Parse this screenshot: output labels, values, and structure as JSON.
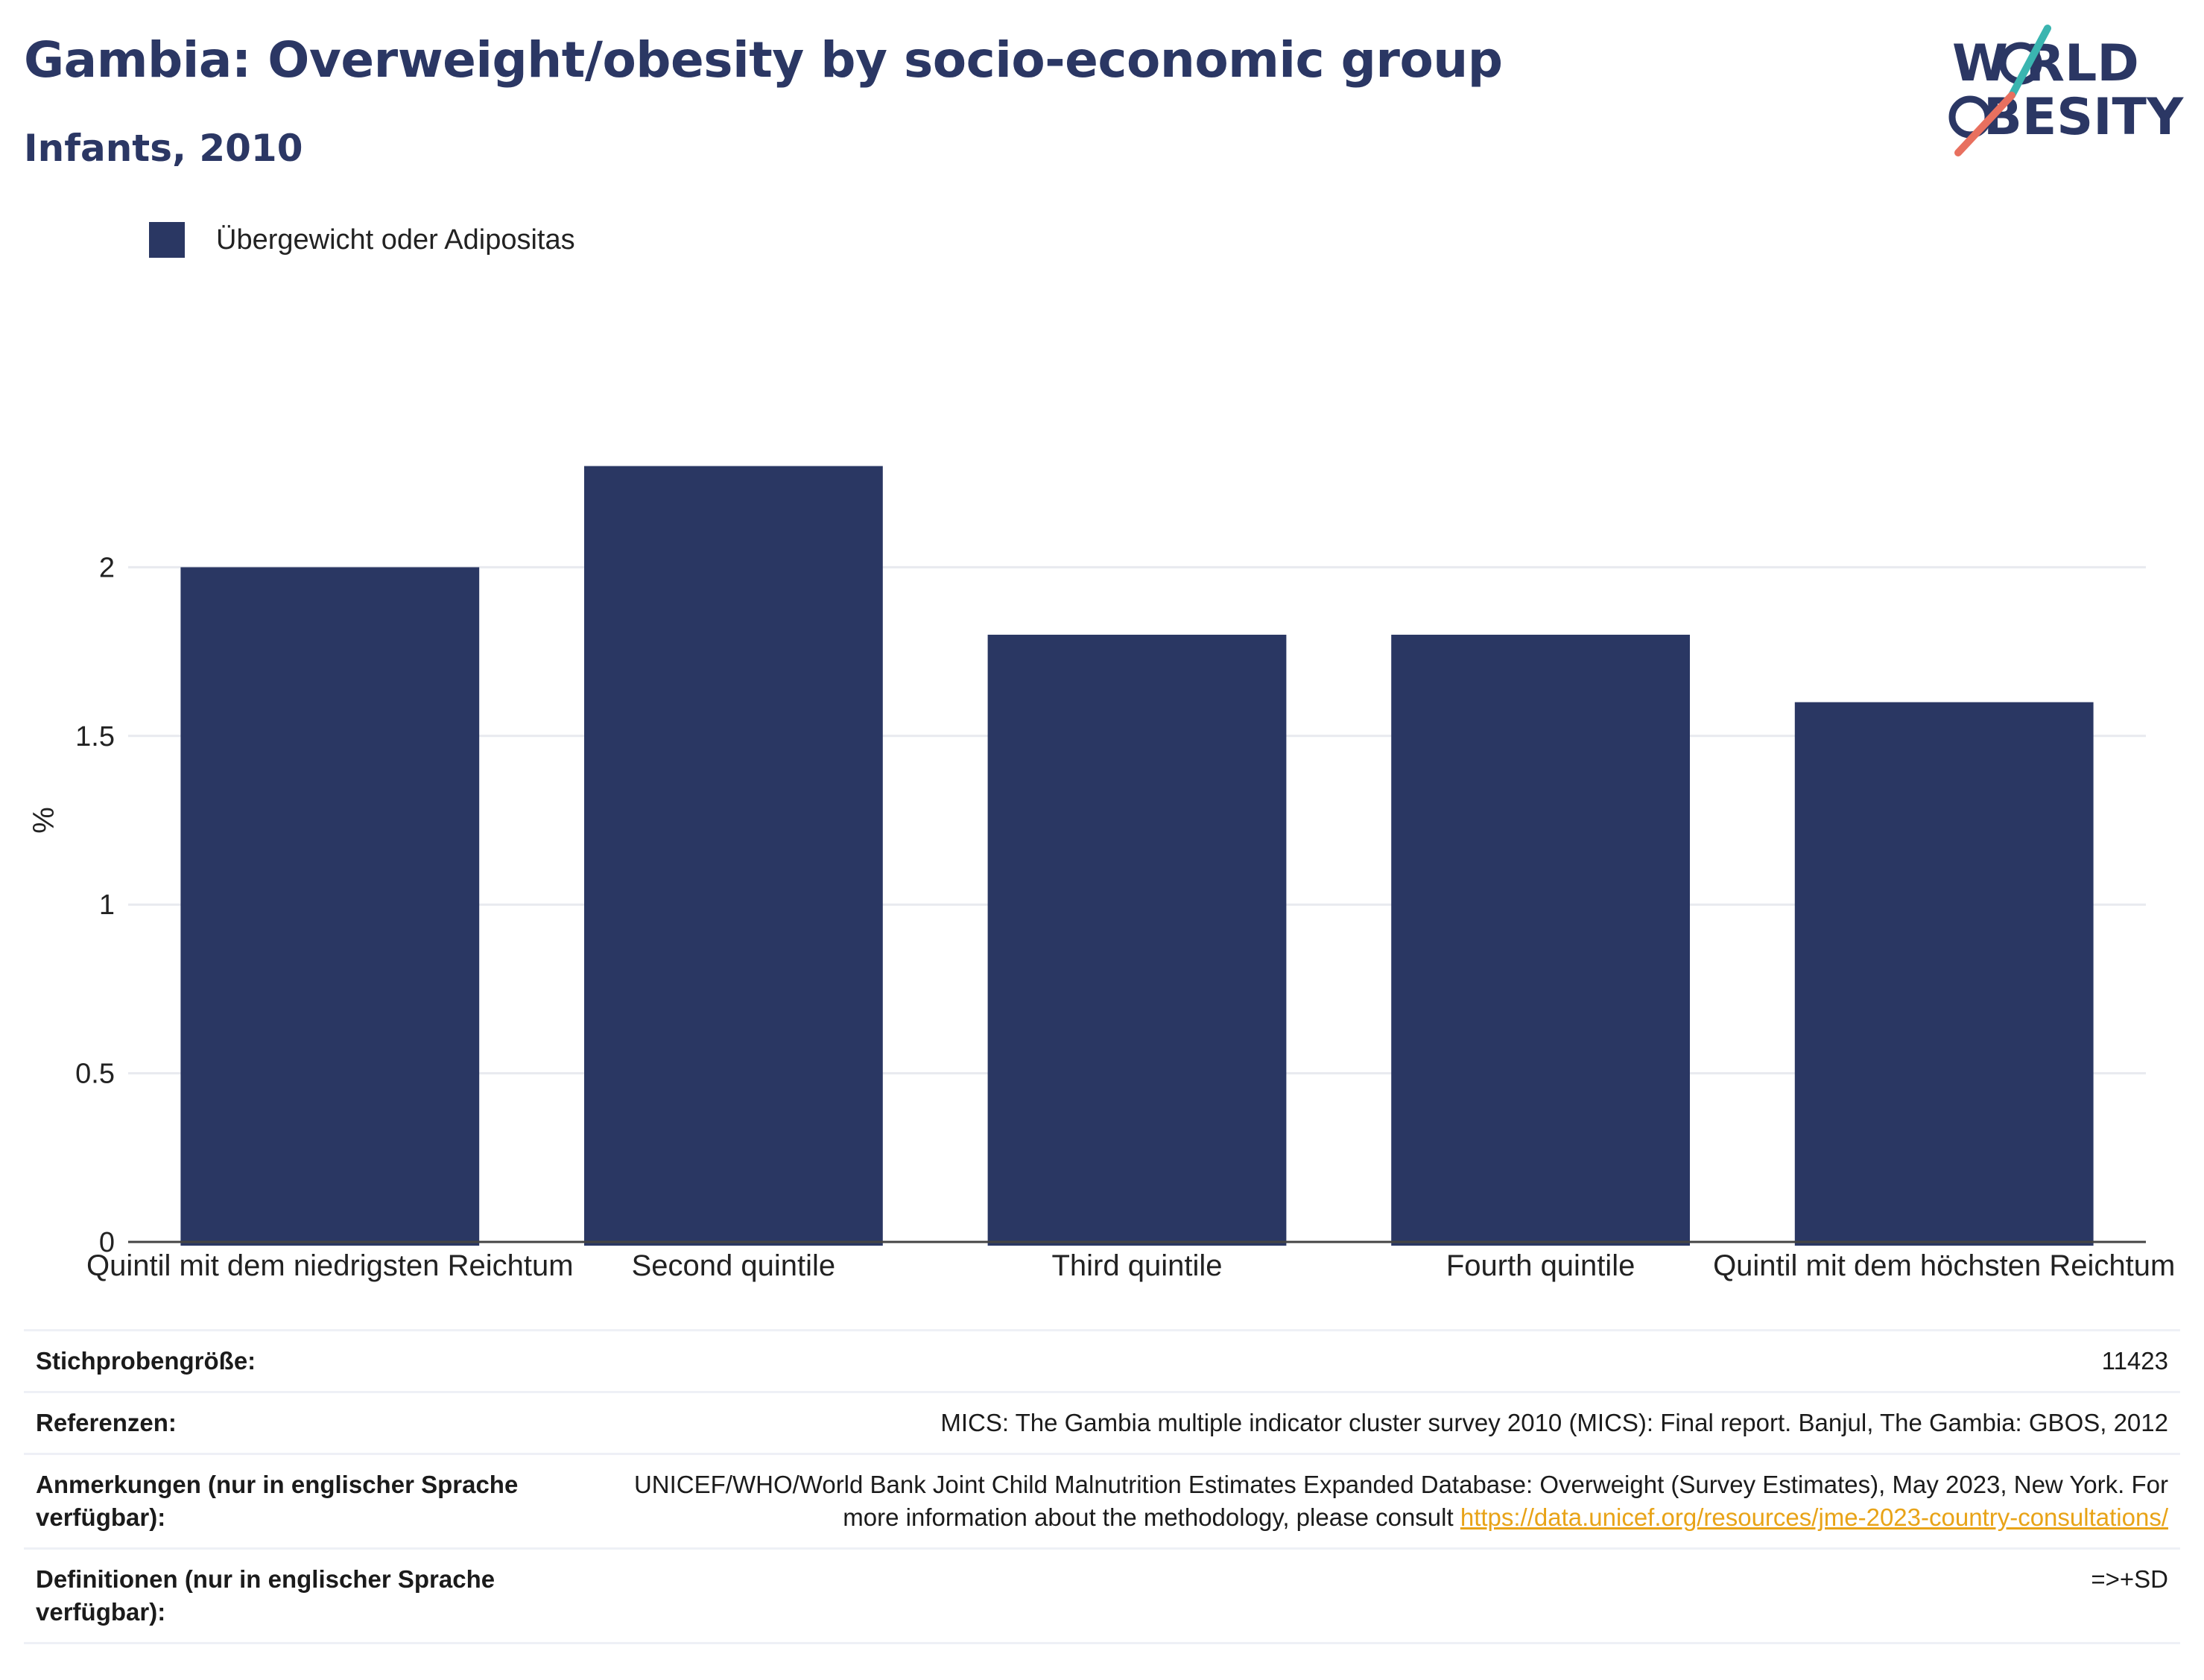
{
  "header": {
    "title": "Gambia: Overweight/obesity by socio-economic group",
    "subtitle": "Infants, 2010"
  },
  "logo": {
    "line1": "W RLD",
    "line2": "BESITY",
    "text": "WORLD OBESITY",
    "colors": {
      "text": "#2b3764",
      "slash_teal": "#3ab5b0",
      "slash_coral": "#e8705f"
    }
  },
  "legend": {
    "items": [
      {
        "label": "Übergewicht oder Adipositas",
        "color": "#2a3763"
      }
    ]
  },
  "chart_data": {
    "type": "bar",
    "title": "Gambia: Overweight/obesity by socio-economic group",
    "subtitle": "Infants, 2010",
    "categories": [
      "Quintil mit dem niedrigsten Reichtum",
      "Second quintile",
      "Third quintile",
      "Fourth quintile",
      "Quintil mit dem höchsten Reichtum"
    ],
    "series": [
      {
        "name": "Übergewicht oder Adipositas",
        "values": [
          2.0,
          2.3,
          1.8,
          1.8,
          1.6
        ],
        "color": "#2a3763"
      }
    ],
    "ylabel": "%",
    "xlabel": "",
    "ylim": [
      0,
      2.5
    ],
    "yticks": [
      0,
      0.5,
      1,
      1.5,
      2
    ],
    "ytick_labels": [
      "0",
      "0.5",
      "1",
      "1.5",
      "2"
    ],
    "grid": true,
    "legend_position": "top-left"
  },
  "footer": {
    "rows": [
      {
        "label": "Stichprobengröße:",
        "value": "11423"
      },
      {
        "label": "Referenzen:",
        "value": "MICS: The Gambia multiple indicator cluster survey 2010 (MICS): Final report. Banjul, The Gambia: GBOS, 2012"
      },
      {
        "label": "Anmerkungen (nur in englischer Sprache verfügbar):",
        "value": "UNICEF/WHO/World Bank Joint Child Malnutrition Estimates Expanded Database: Overweight (Survey Estimates), May 2023, New York. For more information about the methodology, please consult",
        "link": "https://data.unicef.org/resources/jme-2023-country-consultations/"
      },
      {
        "label": "Definitionen (nur in englischer Sprache verfügbar):",
        "value": "=>+SD"
      }
    ]
  }
}
